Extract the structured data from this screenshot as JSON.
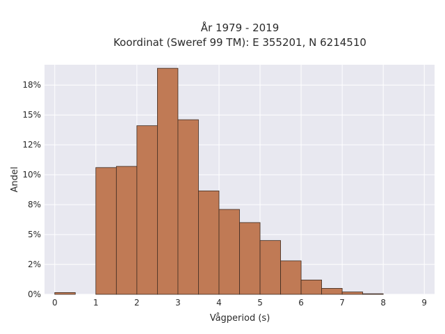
{
  "chart_data": {
    "type": "bar",
    "title_lines": [
      "År 1979 - 2019",
      "Koordinat (Sweref 99 TM): E 355201, N 6214510"
    ],
    "xlabel": "Vågperiod (s)",
    "ylabel": "Andel",
    "xlim": [
      -0.25,
      9.25
    ],
    "ylim": [
      0,
      19.2
    ],
    "x_ticks": [
      0,
      1,
      2,
      3,
      4,
      5,
      6,
      7,
      8,
      9
    ],
    "x_tick_labels": [
      "0",
      "1",
      "2",
      "3",
      "4",
      "5",
      "6",
      "7",
      "8",
      "9"
    ],
    "y_ticks": [
      0,
      2.5,
      5,
      7.5,
      10,
      12.5,
      15,
      17.5
    ],
    "y_tick_labels": [
      "0%",
      "2%",
      "5%",
      "8%",
      "10%",
      "12%",
      "15%",
      "18%"
    ],
    "bin_width": 0.5,
    "bins_start": [
      0,
      1,
      1.5,
      2,
      2.5,
      3,
      3.5,
      4,
      4.5,
      5,
      5.5,
      6,
      6.5,
      7,
      7.5
    ],
    "values": [
      0.15,
      10.6,
      10.7,
      14.1,
      18.9,
      14.6,
      8.65,
      7.1,
      6.0,
      4.5,
      2.8,
      1.2,
      0.5,
      0.2,
      0.05
    ],
    "grid": true,
    "colors": {
      "bar_fill": "#c07a55",
      "bar_edge": "#3c2a20",
      "plot_bg": "#e8e8f0",
      "grid": "#ffffff"
    }
  }
}
